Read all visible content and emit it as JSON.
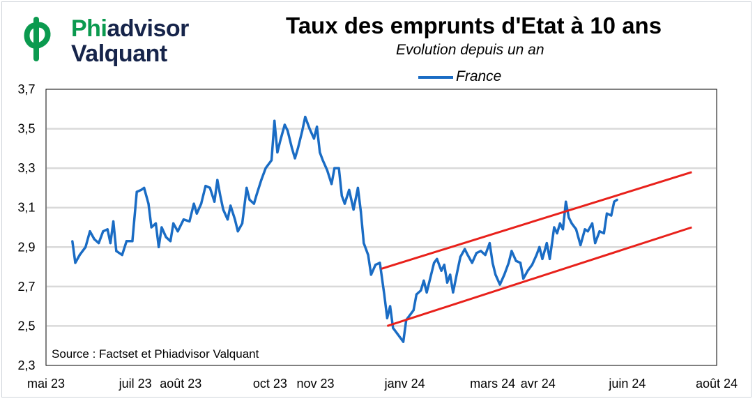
{
  "logo": {
    "line1_part1": "Phi",
    "line1_part2": "advisor",
    "line2": "Valquant",
    "colors": {
      "green": "#0b9a4f",
      "dark": "#16244a"
    }
  },
  "header": {
    "title": "Taux des emprunts d'Etat à 10 ans",
    "subtitle": "Evolution depuis un an"
  },
  "source": "Source : Factset et Phiadvisor Valquant",
  "chart_data": {
    "type": "line",
    "title": "Taux des emprunts d'Etat à 10 ans",
    "subtitle": "Evolution depuis un an",
    "ylim": [
      2.3,
      3.7
    ],
    "yticks": [
      "2,3",
      "2,5",
      "2,7",
      "2,9",
      "3,1",
      "3,3",
      "3,5",
      "3,7"
    ],
    "xlim": [
      "2023-05-01",
      "2024-08-01"
    ],
    "xticks": [
      {
        "date": "2023-05-01",
        "label": "mai 23"
      },
      {
        "date": "2023-07-01",
        "label": "juil 23"
      },
      {
        "date": "2023-08-01",
        "label": "août 23"
      },
      {
        "date": "2023-10-01",
        "label": "oct 23"
      },
      {
        "date": "2023-11-01",
        "label": "nov 23"
      },
      {
        "date": "2024-01-01",
        "label": "janv 24"
      },
      {
        "date": "2024-03-01",
        "label": "mars 24"
      },
      {
        "date": "2024-04-01",
        "label": "avr 24"
      },
      {
        "date": "2024-06-01",
        "label": "juin 24"
      },
      {
        "date": "2024-08-01",
        "label": "août 24"
      }
    ],
    "grid": "horizontal",
    "legend": "top-center",
    "colors": {
      "series": "#1a6cc4",
      "trend": "#e8211b",
      "grid": "#d9d9d9"
    },
    "series": [
      {
        "name": "France",
        "points": [
          [
            "2023-05-19",
            2.93
          ],
          [
            "2023-05-21",
            2.82
          ],
          [
            "2023-05-24",
            2.86
          ],
          [
            "2023-05-28",
            2.9
          ],
          [
            "2023-05-31",
            2.98
          ],
          [
            "2023-06-03",
            2.94
          ],
          [
            "2023-06-06",
            2.92
          ],
          [
            "2023-06-09",
            2.98
          ],
          [
            "2023-06-12",
            2.99
          ],
          [
            "2023-06-14",
            2.92
          ],
          [
            "2023-06-16",
            3.03
          ],
          [
            "2023-06-18",
            2.88
          ],
          [
            "2023-06-22",
            2.86
          ],
          [
            "2023-06-25",
            2.93
          ],
          [
            "2023-06-29",
            2.93
          ],
          [
            "2023-07-02",
            3.18
          ],
          [
            "2023-07-05",
            3.19
          ],
          [
            "2023-07-07",
            3.2
          ],
          [
            "2023-07-10",
            3.12
          ],
          [
            "2023-07-12",
            3.0
          ],
          [
            "2023-07-15",
            3.02
          ],
          [
            "2023-07-17",
            2.9
          ],
          [
            "2023-07-19",
            3.0
          ],
          [
            "2023-07-22",
            2.95
          ],
          [
            "2023-07-25",
            2.93
          ],
          [
            "2023-07-27",
            3.02
          ],
          [
            "2023-07-30",
            2.98
          ],
          [
            "2023-08-03",
            3.04
          ],
          [
            "2023-08-07",
            3.03
          ],
          [
            "2023-08-10",
            3.12
          ],
          [
            "2023-08-12",
            3.07
          ],
          [
            "2023-08-15",
            3.12
          ],
          [
            "2023-08-18",
            3.21
          ],
          [
            "2023-08-21",
            3.2
          ],
          [
            "2023-08-24",
            3.13
          ],
          [
            "2023-08-26",
            3.24
          ],
          [
            "2023-08-28",
            3.16
          ],
          [
            "2023-08-30",
            3.09
          ],
          [
            "2023-09-02",
            3.04
          ],
          [
            "2023-09-04",
            3.11
          ],
          [
            "2023-09-07",
            3.04
          ],
          [
            "2023-09-09",
            2.98
          ],
          [
            "2023-09-12",
            3.02
          ],
          [
            "2023-09-15",
            3.2
          ],
          [
            "2023-09-17",
            3.14
          ],
          [
            "2023-09-20",
            3.12
          ],
          [
            "2023-09-22",
            3.17
          ],
          [
            "2023-09-25",
            3.24
          ],
          [
            "2023-09-28",
            3.3
          ],
          [
            "2023-10-02",
            3.34
          ],
          [
            "2023-10-04",
            3.54
          ],
          [
            "2023-10-06",
            3.38
          ],
          [
            "2023-10-08",
            3.44
          ],
          [
            "2023-10-11",
            3.52
          ],
          [
            "2023-10-13",
            3.49
          ],
          [
            "2023-10-16",
            3.4
          ],
          [
            "2023-10-18",
            3.35
          ],
          [
            "2023-10-20",
            3.4
          ],
          [
            "2023-10-23",
            3.49
          ],
          [
            "2023-10-25",
            3.56
          ],
          [
            "2023-10-28",
            3.5
          ],
          [
            "2023-10-31",
            3.45
          ],
          [
            "2023-11-02",
            3.51
          ],
          [
            "2023-11-04",
            3.38
          ],
          [
            "2023-11-06",
            3.34
          ],
          [
            "2023-11-09",
            3.29
          ],
          [
            "2023-11-12",
            3.22
          ],
          [
            "2023-11-14",
            3.3
          ],
          [
            "2023-11-17",
            3.3
          ],
          [
            "2023-11-19",
            3.16
          ],
          [
            "2023-11-21",
            3.12
          ],
          [
            "2023-11-24",
            3.19
          ],
          [
            "2023-11-27",
            3.09
          ],
          [
            "2023-11-30",
            3.2
          ],
          [
            "2023-12-02",
            3.08
          ],
          [
            "2023-12-04",
            2.92
          ],
          [
            "2023-12-07",
            2.86
          ],
          [
            "2023-12-09",
            2.76
          ],
          [
            "2023-12-12",
            2.81
          ],
          [
            "2023-12-15",
            2.82
          ],
          [
            "2023-12-18",
            2.66
          ],
          [
            "2023-12-20",
            2.54
          ],
          [
            "2023-12-22",
            2.6
          ],
          [
            "2023-12-24",
            2.49
          ],
          [
            "2023-12-27",
            2.46
          ],
          [
            "2023-12-31",
            2.42
          ],
          [
            "2024-01-02",
            2.53
          ],
          [
            "2024-01-05",
            2.56
          ],
          [
            "2024-01-07",
            2.58
          ],
          [
            "2024-01-09",
            2.66
          ],
          [
            "2024-01-12",
            2.68
          ],
          [
            "2024-01-14",
            2.73
          ],
          [
            "2024-01-16",
            2.67
          ],
          [
            "2024-01-19",
            2.76
          ],
          [
            "2024-01-21",
            2.82
          ],
          [
            "2024-01-23",
            2.84
          ],
          [
            "2024-01-26",
            2.78
          ],
          [
            "2024-01-28",
            2.81
          ],
          [
            "2024-01-30",
            2.72
          ],
          [
            "2024-02-01",
            2.76
          ],
          [
            "2024-02-03",
            2.67
          ],
          [
            "2024-02-06",
            2.78
          ],
          [
            "2024-02-08",
            2.85
          ],
          [
            "2024-02-11",
            2.89
          ],
          [
            "2024-02-13",
            2.86
          ],
          [
            "2024-02-16",
            2.82
          ],
          [
            "2024-02-19",
            2.87
          ],
          [
            "2024-02-22",
            2.88
          ],
          [
            "2024-02-25",
            2.86
          ],
          [
            "2024-02-28",
            2.92
          ],
          [
            "2024-03-01",
            2.82
          ],
          [
            "2024-03-03",
            2.76
          ],
          [
            "2024-03-06",
            2.71
          ],
          [
            "2024-03-09",
            2.76
          ],
          [
            "2024-03-12",
            2.82
          ],
          [
            "2024-03-14",
            2.88
          ],
          [
            "2024-03-17",
            2.83
          ],
          [
            "2024-03-20",
            2.82
          ],
          [
            "2024-03-22",
            2.74
          ],
          [
            "2024-03-25",
            2.78
          ],
          [
            "2024-03-28",
            2.81
          ],
          [
            "2024-03-31",
            2.86
          ],
          [
            "2024-04-02",
            2.9
          ],
          [
            "2024-04-04",
            2.84
          ],
          [
            "2024-04-07",
            2.92
          ],
          [
            "2024-04-09",
            2.84
          ],
          [
            "2024-04-12",
            3.0
          ],
          [
            "2024-04-14",
            2.97
          ],
          [
            "2024-04-16",
            3.02
          ],
          [
            "2024-04-18",
            2.99
          ],
          [
            "2024-04-20",
            3.13
          ],
          [
            "2024-04-22",
            3.05
          ],
          [
            "2024-04-24",
            3.02
          ],
          [
            "2024-04-27",
            2.99
          ],
          [
            "2024-04-30",
            2.91
          ],
          [
            "2024-05-03",
            2.99
          ],
          [
            "2024-05-05",
            2.98
          ],
          [
            "2024-05-08",
            3.02
          ],
          [
            "2024-05-10",
            2.92
          ],
          [
            "2024-05-13",
            2.98
          ],
          [
            "2024-05-16",
            2.97
          ],
          [
            "2024-05-18",
            3.07
          ],
          [
            "2024-05-21",
            3.06
          ],
          [
            "2024-05-23",
            3.13
          ],
          [
            "2024-05-25",
            3.14
          ]
        ]
      }
    ],
    "trend_lines": [
      {
        "from": [
          "2023-12-16",
          2.79
        ],
        "to": [
          "2024-07-15",
          3.28
        ]
      },
      {
        "from": [
          "2023-12-20",
          2.5
        ],
        "to": [
          "2024-07-15",
          3.0
        ]
      }
    ]
  }
}
